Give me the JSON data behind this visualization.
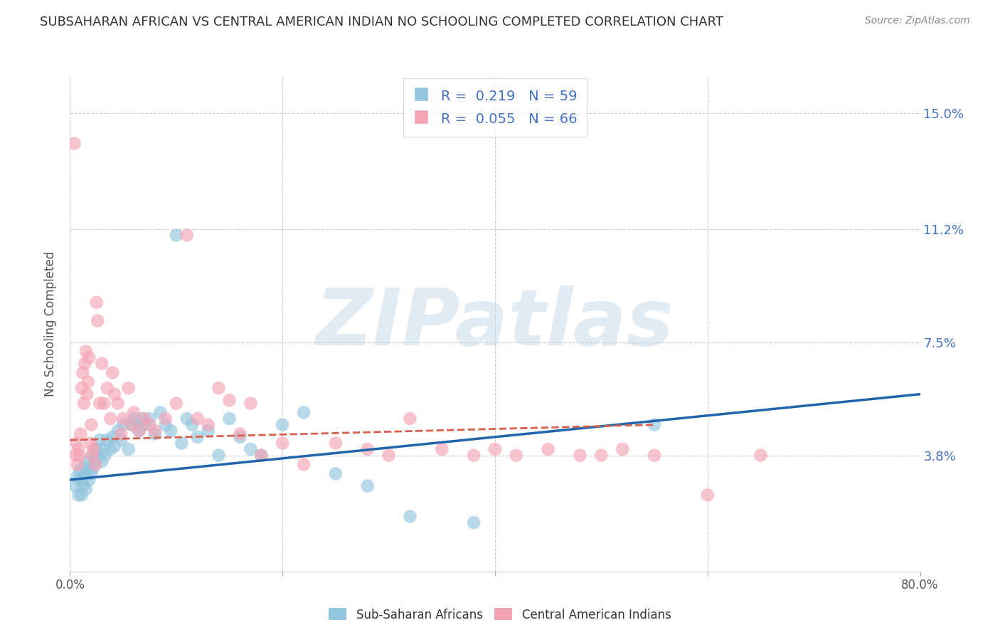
{
  "title": "SUBSAHARAN AFRICAN VS CENTRAL AMERICAN INDIAN NO SCHOOLING COMPLETED CORRELATION CHART",
  "source": "Source: ZipAtlas.com",
  "ylabel": "No Schooling Completed",
  "xlabel": "",
  "xlim": [
    0.0,
    0.8
  ],
  "ylim": [
    0.0,
    0.162
  ],
  "yticks": [
    0.038,
    0.075,
    0.112,
    0.15
  ],
  "ytick_labels": [
    "3.8%",
    "7.5%",
    "11.2%",
    "15.0%"
  ],
  "xticks": [
    0.0,
    0.2,
    0.4,
    0.6,
    0.8
  ],
  "xtick_labels": [
    "0.0%",
    "",
    "",
    "",
    "80.0%"
  ],
  "blue_R": 0.219,
  "blue_N": 59,
  "pink_R": 0.055,
  "pink_N": 66,
  "blue_color": "#92c5de",
  "pink_color": "#f4a3b5",
  "blue_line_color": "#2166ac",
  "pink_line_color": "#d6604d",
  "watermark": "ZIPatlas",
  "legend_label_blue": "Sub-Saharan Africans",
  "legend_label_pink": "Central American Indians",
  "blue_scatter_x": [
    0.005,
    0.007,
    0.008,
    0.009,
    0.01,
    0.011,
    0.012,
    0.013,
    0.014,
    0.015,
    0.016,
    0.017,
    0.018,
    0.02,
    0.021,
    0.022,
    0.024,
    0.025,
    0.026,
    0.028,
    0.03,
    0.031,
    0.033,
    0.035,
    0.038,
    0.04,
    0.042,
    0.045,
    0.048,
    0.05,
    0.055,
    0.058,
    0.06,
    0.065,
    0.068,
    0.07,
    0.075,
    0.08,
    0.085,
    0.09,
    0.095,
    0.1,
    0.105,
    0.11,
    0.115,
    0.12,
    0.13,
    0.14,
    0.15,
    0.16,
    0.17,
    0.18,
    0.2,
    0.22,
    0.25,
    0.28,
    0.32,
    0.38,
    0.55
  ],
  "blue_scatter_y": [
    0.028,
    0.031,
    0.025,
    0.033,
    0.03,
    0.025,
    0.028,
    0.034,
    0.031,
    0.027,
    0.033,
    0.036,
    0.03,
    0.032,
    0.038,
    0.034,
    0.036,
    0.04,
    0.038,
    0.043,
    0.036,
    0.04,
    0.038,
    0.043,
    0.04,
    0.044,
    0.041,
    0.046,
    0.043,
    0.048,
    0.04,
    0.048,
    0.05,
    0.046,
    0.05,
    0.048,
    0.05,
    0.045,
    0.052,
    0.048,
    0.046,
    0.11,
    0.042,
    0.05,
    0.048,
    0.044,
    0.046,
    0.038,
    0.05,
    0.044,
    0.04,
    0.038,
    0.048,
    0.052,
    0.032,
    0.028,
    0.018,
    0.016,
    0.048
  ],
  "pink_scatter_x": [
    0.004,
    0.005,
    0.006,
    0.007,
    0.008,
    0.009,
    0.01,
    0.011,
    0.012,
    0.013,
    0.014,
    0.015,
    0.016,
    0.017,
    0.018,
    0.019,
    0.02,
    0.021,
    0.022,
    0.024,
    0.025,
    0.026,
    0.028,
    0.03,
    0.032,
    0.035,
    0.038,
    0.04,
    0.042,
    0.045,
    0.048,
    0.05,
    0.055,
    0.058,
    0.06,
    0.065,
    0.07,
    0.075,
    0.08,
    0.09,
    0.1,
    0.11,
    0.12,
    0.13,
    0.14,
    0.15,
    0.16,
    0.17,
    0.18,
    0.2,
    0.22,
    0.25,
    0.28,
    0.3,
    0.32,
    0.35,
    0.38,
    0.4,
    0.42,
    0.45,
    0.48,
    0.5,
    0.52,
    0.55,
    0.6,
    0.65
  ],
  "pink_scatter_y": [
    0.14,
    0.038,
    0.042,
    0.035,
    0.04,
    0.038,
    0.045,
    0.06,
    0.065,
    0.055,
    0.068,
    0.072,
    0.058,
    0.062,
    0.07,
    0.042,
    0.048,
    0.038,
    0.04,
    0.035,
    0.088,
    0.082,
    0.055,
    0.068,
    0.055,
    0.06,
    0.05,
    0.065,
    0.058,
    0.055,
    0.045,
    0.05,
    0.06,
    0.048,
    0.052,
    0.046,
    0.05,
    0.048,
    0.046,
    0.05,
    0.055,
    0.11,
    0.05,
    0.048,
    0.06,
    0.056,
    0.045,
    0.055,
    0.038,
    0.042,
    0.035,
    0.042,
    0.04,
    0.038,
    0.05,
    0.04,
    0.038,
    0.04,
    0.038,
    0.04,
    0.038,
    0.038,
    0.04,
    0.038,
    0.025,
    0.038
  ]
}
